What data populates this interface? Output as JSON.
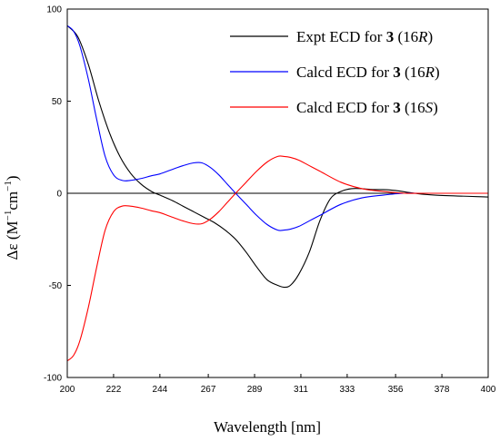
{
  "chart_data": {
    "type": "line",
    "xlabel": "Wavelength [nm]",
    "ylabel_prefix": "Δε (M",
    "ylabel_sup1": "−1",
    "ylabel_mid": "cm",
    "ylabel_sup2": "−1",
    "ylabel_suffix": ")",
    "xlim": [
      200,
      400
    ],
    "ylim": [
      -100,
      100
    ],
    "xticks": [
      200,
      222,
      244,
      267,
      289,
      311,
      333,
      356,
      378,
      400
    ],
    "yticks": [
      -100,
      -50,
      0,
      50,
      100
    ],
    "legend_position": "top-right",
    "series": [
      {
        "name": "Expt ECD for 3 (16R)",
        "legend": {
          "prefix": "Expt ECD for ",
          "bold": "3",
          "mid": " (16",
          "italic": "R",
          "suffix": ")"
        },
        "color": "#000000",
        "x": [
          200,
          205,
          210,
          215,
          220,
          225,
          230,
          235,
          240,
          244,
          250,
          255,
          260,
          265,
          270,
          275,
          280,
          285,
          290,
          295,
          300,
          303,
          306,
          310,
          315,
          320,
          325,
          330,
          335,
          340,
          345,
          350,
          356,
          365,
          375,
          400
        ],
        "y": [
          91,
          85,
          70,
          50,
          33,
          20,
          11,
          5,
          1,
          -1,
          -4,
          -7,
          -10,
          -13,
          -16,
          -20,
          -25,
          -32,
          -40,
          -47,
          -50,
          -51,
          -50,
          -44,
          -32,
          -15,
          -3,
          1,
          2.5,
          2.5,
          2,
          2,
          1.5,
          0,
          -1,
          -2
        ]
      },
      {
        "name": "Calcd ECD for 3 (16R)",
        "legend": {
          "prefix": "Calcd ECD for ",
          "bold": "3",
          "mid": " (16",
          "italic": "R",
          "suffix": ")"
        },
        "color": "#0000ff",
        "x": [
          200,
          203,
          206,
          210,
          214,
          218,
          222,
          226,
          230,
          235,
          240,
          244,
          250,
          255,
          260,
          264,
          268,
          272,
          276,
          280,
          285,
          290,
          295,
          300,
          303,
          306,
          310,
          315,
          320,
          330,
          340,
          350,
          360,
          370,
          400
        ],
        "y": [
          91,
          88,
          80,
          62,
          40,
          20,
          10,
          7,
          7,
          8,
          9.5,
          10.5,
          13,
          15,
          16.5,
          16.5,
          14,
          10,
          5,
          0,
          -6,
          -12,
          -17,
          -20,
          -20,
          -19.5,
          -18,
          -15,
          -12,
          -6,
          -2.5,
          -1,
          0,
          0,
          0
        ]
      },
      {
        "name": "Calcd ECD for 3 (16S)",
        "legend": {
          "prefix": "Calcd ECD for ",
          "bold": "3",
          "mid": " (16",
          "italic": "S",
          "suffix": ")"
        },
        "color": "#ff0000",
        "x": [
          200,
          203,
          206,
          210,
          214,
          218,
          222,
          226,
          230,
          235,
          240,
          244,
          250,
          255,
          260,
          264,
          268,
          272,
          276,
          280,
          285,
          290,
          295,
          300,
          303,
          306,
          310,
          315,
          320,
          330,
          340,
          350,
          360,
          370,
          400
        ],
        "y": [
          -91,
          -88,
          -80,
          -62,
          -40,
          -20,
          -10,
          -7,
          -7,
          -8,
          -9.5,
          -10.5,
          -13,
          -15,
          -16.5,
          -16.5,
          -14,
          -10,
          -5,
          0,
          6,
          12,
          17,
          20,
          20,
          19.5,
          18,
          15,
          12,
          6,
          2.5,
          1,
          0,
          0,
          0
        ]
      }
    ]
  }
}
